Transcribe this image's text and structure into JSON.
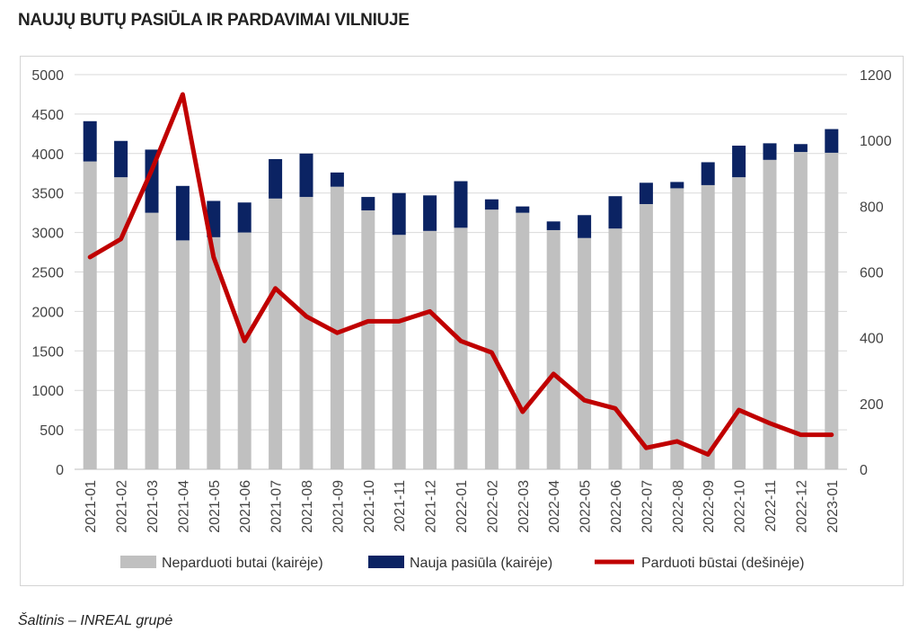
{
  "title": "NAUJŲ BUTŲ PASIŪLA IR PARDAVIMAI VILNIUJE",
  "source": "Šaltinis – INREAL grupė",
  "colors": {
    "unsold": "#c0c0c0",
    "new_supply": "#0b2363",
    "sold": "#c00000",
    "grid": "#d9d9d9"
  },
  "chart_data": {
    "type": "bar",
    "stacked": true,
    "categories": [
      "2021-01",
      "2021-02",
      "2021-03",
      "2021-04",
      "2021-05",
      "2021-06",
      "2021-07",
      "2021-08",
      "2021-09",
      "2021-10",
      "2021-11",
      "2021-12",
      "2022-01",
      "2022-02",
      "2022-03",
      "2022-04",
      "2022-05",
      "2022-06",
      "2022-07",
      "2022-08",
      "2022-09",
      "2022-10",
      "2022-11",
      "2022-12",
      "2023-01"
    ],
    "series": [
      {
        "name": "Neparduoti butai (kairėje)",
        "type": "bar",
        "axis": "left",
        "values": [
          3900,
          3700,
          3250,
          2900,
          2940,
          3000,
          3430,
          3450,
          3580,
          3280,
          2970,
          3020,
          3060,
          3290,
          3250,
          3030,
          2930,
          3050,
          3360,
          3560,
          3600,
          3700,
          3920,
          4020,
          4010
        ]
      },
      {
        "name": "Nauja pasiūla (kairėje)",
        "type": "bar",
        "axis": "left",
        "values": [
          510,
          460,
          800,
          690,
          460,
          380,
          500,
          550,
          180,
          170,
          530,
          450,
          590,
          130,
          80,
          110,
          290,
          410,
          270,
          80,
          290,
          400,
          210,
          100,
          300
        ]
      },
      {
        "name": "Parduoti būstai (dešinėje)",
        "type": "line",
        "axis": "right",
        "values": [
          645,
          700,
          910,
          1140,
          645,
          390,
          550,
          465,
          415,
          450,
          450,
          480,
          390,
          355,
          175,
          290,
          210,
          185,
          65,
          85,
          45,
          180,
          140,
          105,
          105
        ]
      }
    ],
    "y_left": {
      "min": 0,
      "max": 5000,
      "ticks": [
        "0",
        "500",
        "1000",
        "1500",
        "2000",
        "2500",
        "3000",
        "3500",
        "4000",
        "4500",
        "5000"
      ]
    },
    "y_right": {
      "min": 0,
      "max": 1200,
      "ticks": [
        "0",
        "200",
        "400",
        "600",
        "800",
        "1000",
        "1200"
      ]
    },
    "grid": true,
    "legend_position": "bottom"
  }
}
